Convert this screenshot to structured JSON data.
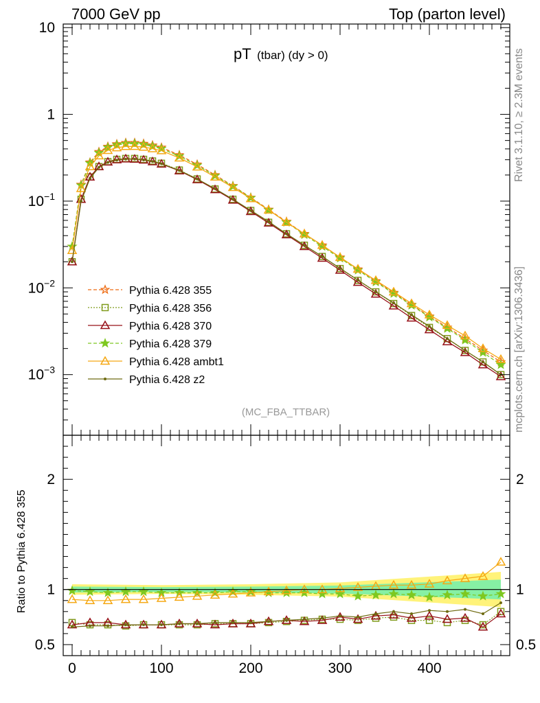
{
  "header": {
    "left": "7000 GeV pp",
    "right": "Top (parton level)"
  },
  "plot_title": {
    "main": "pT",
    "sub": "(tbar) (dy > 0)"
  },
  "analysis_tag": "(MC_FBA_TTBAR)",
  "side_labels": {
    "rivet": "Rivet 3.1.10, ≥ 2.3M events",
    "mcplots": "mcplots.cern.ch [arXiv:1306.3436]"
  },
  "ratio_ylabel": "Ratio to Pythia 6.428 355",
  "colors": {
    "s355": "#ee6a10",
    "s356": "#7f9a1a",
    "s370": "#961018",
    "s379": "#7ec820",
    "ambt1": "#f5a814",
    "z2": "#6e6a10",
    "band_yellow": "#fff37a",
    "band_green": "#86f0a4"
  },
  "chart_data": [
    {
      "type": "line",
      "panel": "main",
      "yscale": "log",
      "xlim": [
        -10,
        490
      ],
      "ylim": [
        0.0002,
        11
      ],
      "yticks": [
        {
          "value": 10,
          "label": "10"
        },
        {
          "value": 1,
          "label": "1"
        },
        {
          "value": 0.1,
          "label": "10",
          "exp": "−1"
        },
        {
          "value": 0.01,
          "label": "10",
          "exp": "−2"
        },
        {
          "value": 0.001,
          "label": "10",
          "exp": "−3"
        }
      ],
      "x": [
        0,
        10,
        20,
        30,
        40,
        50,
        60,
        70,
        80,
        90,
        100,
        120,
        140,
        160,
        180,
        200,
        220,
        240,
        260,
        280,
        300,
        320,
        340,
        360,
        380,
        400,
        420,
        440,
        460,
        480
      ],
      "series": [
        {
          "name": "Pythia 6.428 355",
          "key": "s355",
          "marker": "star-open",
          "dash": "5,3",
          "values": [
            0.03,
            0.155,
            0.28,
            0.37,
            0.425,
            0.455,
            0.47,
            0.47,
            0.46,
            0.44,
            0.415,
            0.34,
            0.265,
            0.2,
            0.15,
            0.11,
            0.08,
            0.058,
            0.042,
            0.031,
            0.0225,
            0.0164,
            0.012,
            0.0088,
            0.0064,
            0.0047,
            0.0035,
            0.0026,
            0.0019,
            0.0014
          ]
        },
        {
          "name": "Pythia 6.428 356",
          "key": "s356",
          "marker": "square-open",
          "dash": "2,2",
          "values": [
            0.02,
            0.105,
            0.19,
            0.25,
            0.285,
            0.303,
            0.31,
            0.31,
            0.303,
            0.29,
            0.273,
            0.228,
            0.18,
            0.138,
            0.105,
            0.078,
            0.057,
            0.042,
            0.031,
            0.023,
            0.0167,
            0.0122,
            0.009,
            0.0066,
            0.0048,
            0.0035,
            0.0026,
            0.0019,
            0.0014,
            0.001
          ]
        },
        {
          "name": "Pythia 6.428 370",
          "key": "s370",
          "marker": "triangle-open",
          "dash": "",
          "values": [
            0.02,
            0.105,
            0.19,
            0.25,
            0.283,
            0.3,
            0.307,
            0.305,
            0.298,
            0.285,
            0.268,
            0.224,
            0.177,
            0.136,
            0.103,
            0.076,
            0.056,
            0.041,
            0.03,
            0.022,
            0.016,
            0.0116,
            0.0085,
            0.0062,
            0.0045,
            0.0033,
            0.0024,
            0.0018,
            0.0013,
            0.00095
          ]
        },
        {
          "name": "Pythia 6.428 379",
          "key": "s379",
          "marker": "star-filled",
          "dash": "5,3",
          "values": [
            0.03,
            0.152,
            0.274,
            0.36,
            0.415,
            0.445,
            0.458,
            0.458,
            0.448,
            0.428,
            0.403,
            0.33,
            0.258,
            0.196,
            0.148,
            0.109,
            0.079,
            0.057,
            0.041,
            0.03,
            0.022,
            0.016,
            0.0117,
            0.0086,
            0.0063,
            0.0046,
            0.0034,
            0.0025,
            0.0018,
            0.0013
          ]
        },
        {
          "name": "Pythia 6.428 ambt1",
          "key": "ambt1",
          "marker": "triangle-open",
          "dash": "",
          "values": [
            0.027,
            0.14,
            0.25,
            0.333,
            0.385,
            0.413,
            0.427,
            0.428,
            0.42,
            0.403,
            0.382,
            0.315,
            0.248,
            0.19,
            0.144,
            0.107,
            0.079,
            0.057,
            0.042,
            0.031,
            0.0225,
            0.0165,
            0.0122,
            0.009,
            0.0066,
            0.0049,
            0.0037,
            0.0028,
            0.002,
            0.0015
          ]
        },
        {
          "name": "Pythia 6.428 z2",
          "key": "z2",
          "marker": "dot",
          "dash": "",
          "values": [
            0.02,
            0.1,
            0.183,
            0.245,
            0.28,
            0.297,
            0.305,
            0.305,
            0.298,
            0.286,
            0.27,
            0.226,
            0.18,
            0.139,
            0.105,
            0.078,
            0.058,
            0.042,
            0.031,
            0.023,
            0.0168,
            0.0123,
            0.009,
            0.0067,
            0.0049,
            0.0036,
            0.0026,
            0.0019,
            0.0014,
            0.001
          ]
        }
      ]
    },
    {
      "type": "line",
      "panel": "ratio",
      "reference": "Pythia 6.428 355",
      "xlim": [
        -10,
        490
      ],
      "ylim": [
        0.4,
        2.4
      ],
      "xticks": [
        0,
        100,
        200,
        300,
        400
      ],
      "yticks": [
        0.5,
        1,
        2
      ],
      "x": [
        0,
        20,
        40,
        60,
        80,
        100,
        120,
        140,
        160,
        180,
        200,
        220,
        240,
        260,
        280,
        300,
        320,
        340,
        360,
        380,
        400,
        420,
        440,
        460,
        480
      ],
      "series": [
        {
          "key": "s356",
          "values": [
            0.7,
            0.68,
            0.68,
            0.67,
            0.68,
            0.68,
            0.68,
            0.68,
            0.69,
            0.69,
            0.69,
            0.7,
            0.71,
            0.72,
            0.73,
            0.73,
            0.72,
            0.74,
            0.75,
            0.72,
            0.72,
            0.7,
            0.72,
            0.68,
            0.8
          ]
        },
        {
          "key": "s370",
          "values": [
            0.68,
            0.7,
            0.7,
            0.68,
            0.68,
            0.68,
            0.69,
            0.69,
            0.68,
            0.69,
            0.69,
            0.71,
            0.72,
            0.71,
            0.72,
            0.75,
            0.73,
            0.76,
            0.77,
            0.74,
            0.76,
            0.73,
            0.74,
            0.66,
            0.78
          ]
        },
        {
          "key": "s379",
          "values": [
            0.99,
            0.98,
            0.97,
            0.98,
            0.98,
            0.97,
            0.97,
            0.97,
            0.97,
            0.98,
            0.98,
            0.97,
            0.97,
            0.97,
            0.96,
            0.96,
            0.94,
            0.95,
            0.96,
            0.95,
            0.93,
            0.95,
            0.96,
            0.94,
            0.96
          ]
        },
        {
          "key": "ambt1",
          "values": [
            0.91,
            0.9,
            0.9,
            0.91,
            0.91,
            0.92,
            0.93,
            0.94,
            0.95,
            0.96,
            0.97,
            0.98,
            0.99,
            1.0,
            1.0,
            1.01,
            1.02,
            1.03,
            1.04,
            1.04,
            1.05,
            1.08,
            1.1,
            1.12,
            1.25
          ]
        },
        {
          "key": "z2",
          "values": [
            0.66,
            0.67,
            0.67,
            0.68,
            0.68,
            0.68,
            0.69,
            0.69,
            0.7,
            0.7,
            0.7,
            0.71,
            0.72,
            0.73,
            0.74,
            0.76,
            0.75,
            0.78,
            0.8,
            0.78,
            0.81,
            0.8,
            0.82,
            0.78,
            0.88
          ]
        }
      ]
    }
  ]
}
